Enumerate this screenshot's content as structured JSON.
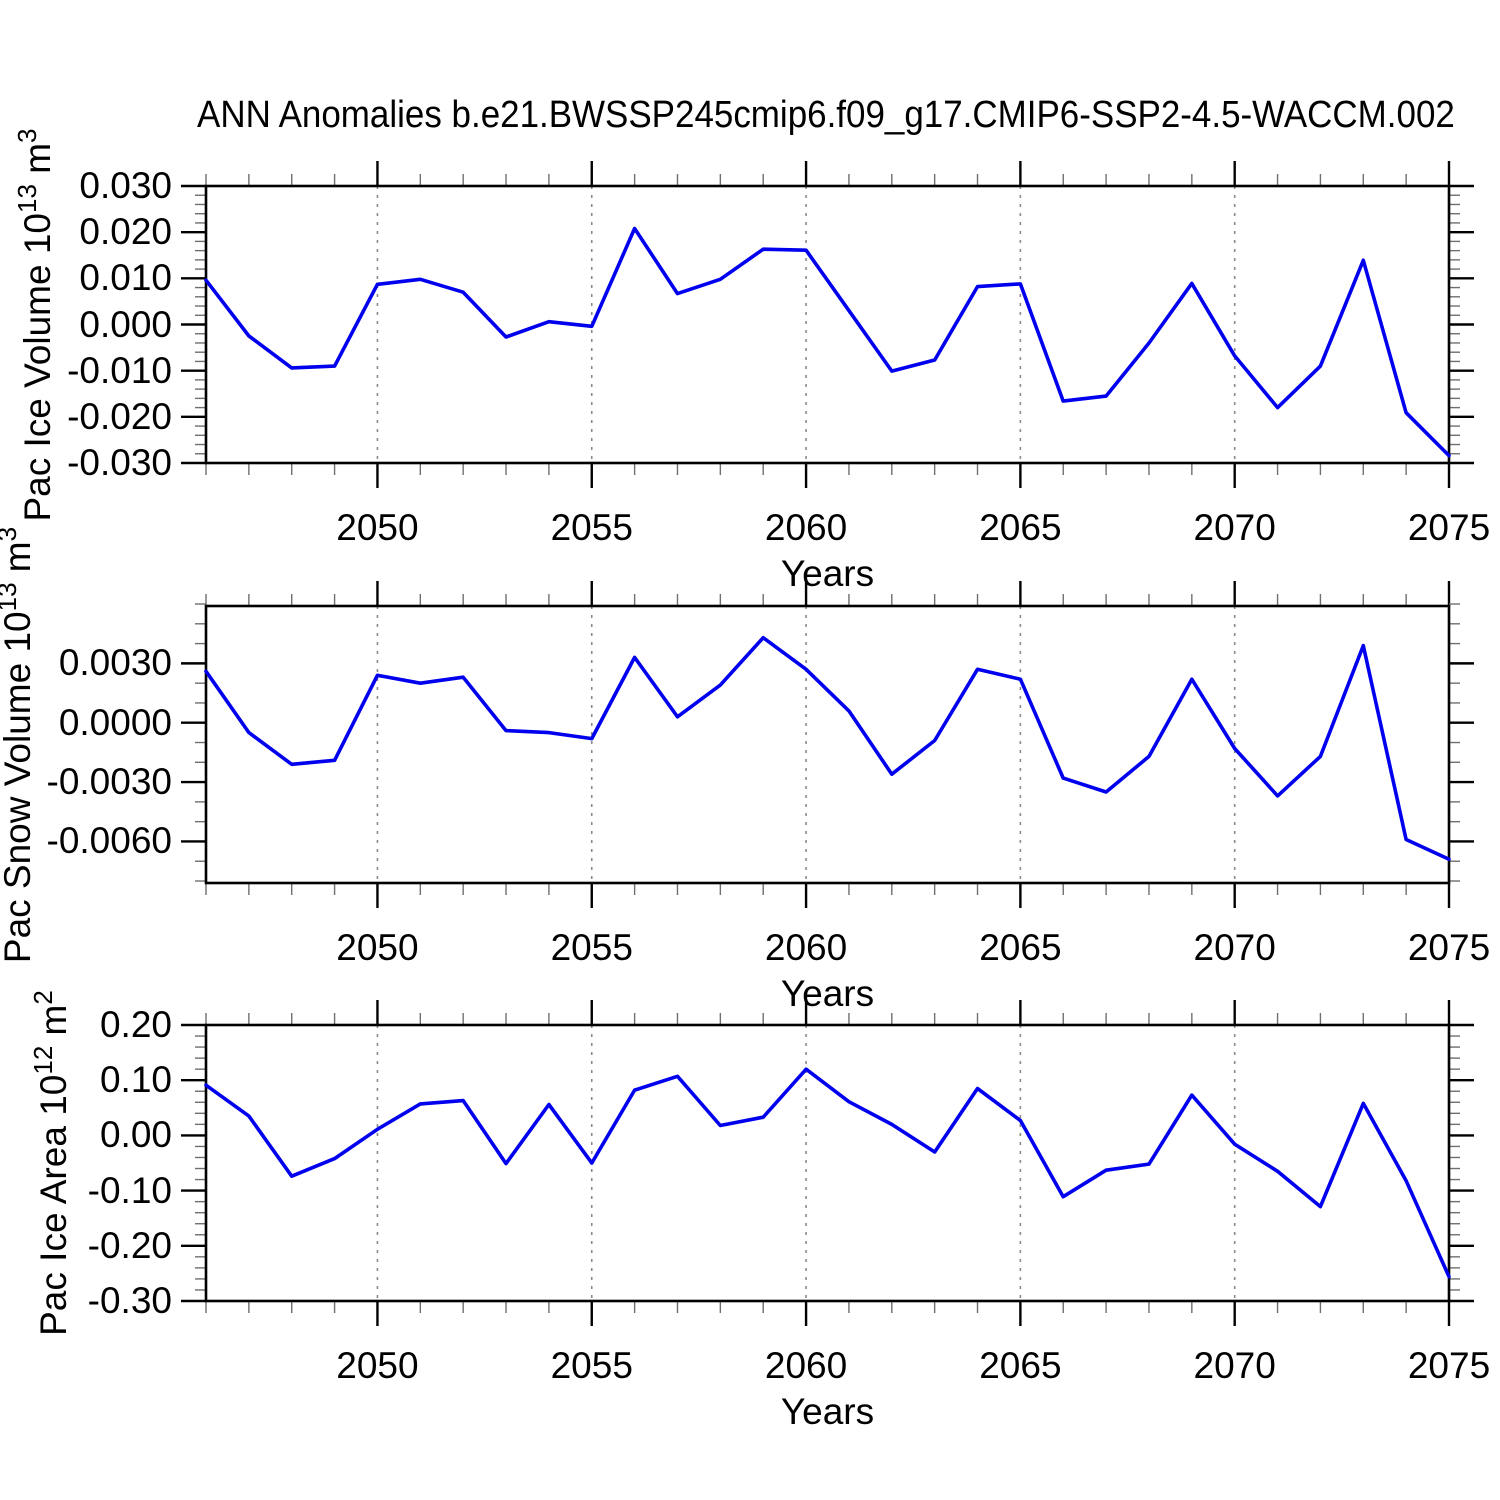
{
  "title": "ANN Anomalies b.e21.BWSSP245cmip6.f09_g17.CMIP6-SSP2-4.5-WACCM.002",
  "xlabel": "Years",
  "colors": {
    "line": "#0000ee",
    "axis": "#000000",
    "grid": "#8a8a8a",
    "minor_tick": "#6f6f6f",
    "background": "#ffffff",
    "text": "#000000"
  },
  "chart_data": [
    {
      "type": "line",
      "title": "",
      "ylabel": "Pac Ice Volume 10^13 m^3",
      "ylabel_segments": [
        [
          "Pac Ice Volume 10",
          0
        ],
        [
          "13",
          1
        ],
        [
          " m",
          0
        ],
        [
          "3",
          1
        ]
      ],
      "xlabel": "Years",
      "x": [
        2046,
        2047,
        2048,
        2049,
        2050,
        2051,
        2052,
        2053,
        2054,
        2055,
        2056,
        2057,
        2058,
        2059,
        2060,
        2061,
        2062,
        2063,
        2064,
        2065,
        2066,
        2067,
        2068,
        2069,
        2070,
        2071,
        2072,
        2073,
        2074,
        2075
      ],
      "values": [
        0.0096,
        -0.0025,
        -0.0094,
        -0.009,
        0.0087,
        0.0098,
        0.007,
        -0.0027,
        0.0006,
        -0.0004,
        0.0208,
        0.0067,
        0.0098,
        0.0163,
        0.0161,
        0.003,
        -0.0101,
        -0.0077,
        0.0082,
        0.0088,
        -0.0166,
        -0.0155,
        -0.004,
        0.0089,
        -0.0068,
        -0.018,
        -0.009,
        0.0139,
        -0.0191,
        -0.0284
      ],
      "xlim": [
        2046,
        2075
      ],
      "ylim": [
        -0.03,
        0.03
      ],
      "ytick_values": [
        0.03,
        0.02,
        0.01,
        0.0,
        -0.01,
        -0.02,
        -0.03
      ],
      "ytick_labels": [
        "0.030",
        "0.020",
        "0.010",
        "0.000",
        "-0.010",
        "-0.020",
        "-0.030"
      ],
      "yminor_step": 0.002,
      "xtick_values": [
        2050,
        2055,
        2060,
        2065,
        2070,
        2075
      ],
      "xtick_labels": [
        "2050",
        "2055",
        "2060",
        "2065",
        "2070",
        "2075"
      ],
      "xminor_step": 1,
      "grid_x_values": [
        2050,
        2055,
        2060,
        2065,
        2070
      ],
      "grid": "vertical-dashed",
      "legend": "none"
    },
    {
      "type": "line",
      "title": "",
      "ylabel": "Pac Snow Volume 10^13 m^3",
      "ylabel_segments": [
        [
          "Pac Snow Volume 10",
          0
        ],
        [
          "13",
          1
        ],
        [
          " m",
          0
        ],
        [
          "3",
          1
        ]
      ],
      "xlabel": "Years",
      "x": [
        2046,
        2047,
        2048,
        2049,
        2050,
        2051,
        2052,
        2053,
        2054,
        2055,
        2056,
        2057,
        2058,
        2059,
        2060,
        2061,
        2062,
        2063,
        2064,
        2065,
        2066,
        2067,
        2068,
        2069,
        2070,
        2071,
        2072,
        2073,
        2074,
        2075
      ],
      "values": [
        0.0026,
        -0.0005,
        -0.0021,
        -0.0019,
        0.0024,
        0.002,
        0.0023,
        -0.0004,
        -0.0005,
        -0.0008,
        0.0033,
        0.0003,
        0.0019,
        0.0043,
        0.0027,
        0.0006,
        -0.0026,
        -0.0009,
        0.0027,
        0.0022,
        -0.0028,
        -0.0035,
        -0.0017,
        0.0022,
        -0.0013,
        -0.0037,
        -0.0017,
        0.0039,
        -0.0059,
        -0.0069
      ],
      "xlim": [
        2046,
        2075
      ],
      "ylim": [
        -0.0081,
        0.0059
      ],
      "ytick_values": [
        0.003,
        0.0,
        -0.003,
        -0.006
      ],
      "ytick_labels": [
        "0.0030",
        "0.0000",
        "-0.0030",
        "-0.0060"
      ],
      "yminor_step": 0.001,
      "xtick_values": [
        2050,
        2055,
        2060,
        2065,
        2070,
        2075
      ],
      "xtick_labels": [
        "2050",
        "2055",
        "2060",
        "2065",
        "2070",
        "2075"
      ],
      "xminor_step": 1,
      "grid_x_values": [
        2050,
        2055,
        2060,
        2065,
        2070
      ],
      "grid": "vertical-dashed",
      "legend": "none"
    },
    {
      "type": "line",
      "title": "",
      "ylabel": "Pac Ice Area 10^12 m^2",
      "ylabel_segments": [
        [
          "Pac Ice Area 10",
          0
        ],
        [
          "12",
          1
        ],
        [
          " m",
          0
        ],
        [
          "2",
          1
        ]
      ],
      "xlabel": "Years",
      "x": [
        2046,
        2047,
        2048,
        2049,
        2050,
        2051,
        2052,
        2053,
        2054,
        2055,
        2056,
        2057,
        2058,
        2059,
        2060,
        2061,
        2062,
        2063,
        2064,
        2065,
        2066,
        2067,
        2068,
        2069,
        2070,
        2071,
        2072,
        2073,
        2074,
        2075
      ],
      "values": [
        0.091,
        0.035,
        -0.074,
        -0.042,
        0.011,
        0.057,
        0.063,
        -0.051,
        0.056,
        -0.05,
        0.082,
        0.107,
        0.018,
        0.033,
        0.12,
        0.061,
        0.02,
        -0.03,
        0.085,
        0.027,
        -0.111,
        -0.063,
        -0.052,
        0.073,
        -0.016,
        -0.065,
        -0.129,
        0.058,
        -0.082,
        -0.256
      ],
      "xlim": [
        2046,
        2075
      ],
      "ylim": [
        -0.3,
        0.2
      ],
      "ytick_values": [
        0.2,
        0.1,
        0.0,
        -0.1,
        -0.2,
        -0.3
      ],
      "ytick_labels": [
        "0.20",
        "0.10",
        "0.00",
        "-0.10",
        "-0.20",
        "-0.30"
      ],
      "yminor_step": 0.02,
      "xtick_values": [
        2050,
        2055,
        2060,
        2065,
        2070,
        2075
      ],
      "xtick_labels": [
        "2050",
        "2055",
        "2060",
        "2065",
        "2070",
        "2075"
      ],
      "xminor_step": 1,
      "grid_x_values": [
        2050,
        2055,
        2060,
        2065,
        2070
      ],
      "grid": "vertical-dashed",
      "legend": "none"
    }
  ]
}
